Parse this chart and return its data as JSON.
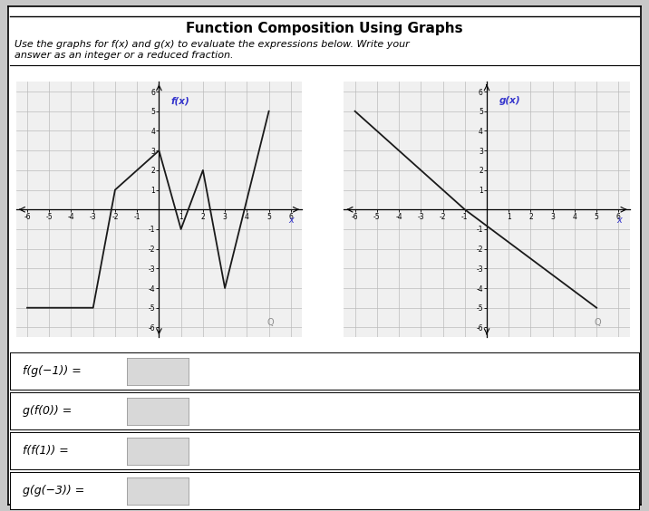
{
  "title": "Function Composition Using Graphs",
  "subtitle_line1": "Use the graphs for f(x) and g(x) to evaluate the expressions below. Write your",
  "subtitle_line2": "answer as an integer or a reduced fraction.",
  "f_points": [
    [
      -6,
      -5
    ],
    [
      -3,
      -5
    ],
    [
      -2,
      1
    ],
    [
      0,
      3
    ],
    [
      1,
      -1
    ],
    [
      2,
      2
    ],
    [
      3,
      -4
    ],
    [
      5,
      5
    ]
  ],
  "g_points": [
    [
      -6,
      5
    ],
    [
      -1,
      0
    ],
    [
      5,
      -5
    ]
  ],
  "f_label": "f(x)",
  "g_label": "g(x)",
  "xlim": [
    -6.5,
    6.5
  ],
  "ylim": [
    -6.5,
    6.5
  ],
  "expressions": [
    "f(g(−1)) =",
    "g(f(0)) =",
    "f(f(1)) =",
    "g(g(−3)) ="
  ],
  "box_bg": "#ffffff",
  "panel_bg": "#f0f0f0",
  "grid_color": "#bbbbbb",
  "axis_color": "#000000",
  "line_color": "#1a1a1a",
  "label_color_blue": "#3333cc",
  "border_color": "#888888",
  "input_box_color": "#d8d8d8",
  "outer_bg": "#c8c8c8"
}
